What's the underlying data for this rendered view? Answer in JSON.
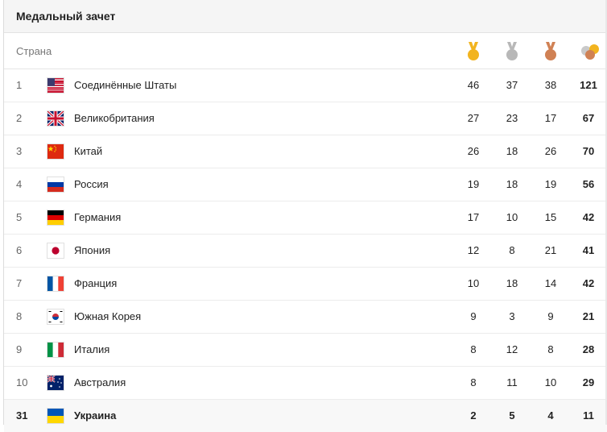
{
  "title": "Медальный зачет",
  "header": {
    "country_label": "Страна",
    "icons": [
      "gold-medal-icon",
      "silver-medal-icon",
      "bronze-medal-icon",
      "total-medals-icon"
    ]
  },
  "colors": {
    "gold": "#f2b41f",
    "silver": "#b8b8b8",
    "bronze": "#d08154",
    "highlight_row": "#f8f8f8"
  },
  "rows": [
    {
      "rank": "1",
      "country": "Соединённые Штаты",
      "flag": "us-flag-icon",
      "gold": "46",
      "silver": "37",
      "bronze": "38",
      "total": "121"
    },
    {
      "rank": "2",
      "country": "Великобритания",
      "flag": "uk-flag-icon",
      "gold": "27",
      "silver": "23",
      "bronze": "17",
      "total": "67"
    },
    {
      "rank": "3",
      "country": "Китай",
      "flag": "china-flag-icon",
      "gold": "26",
      "silver": "18",
      "bronze": "26",
      "total": "70"
    },
    {
      "rank": "4",
      "country": "Россия",
      "flag": "russia-flag-icon",
      "gold": "19",
      "silver": "18",
      "bronze": "19",
      "total": "56"
    },
    {
      "rank": "5",
      "country": "Германия",
      "flag": "germany-flag-icon",
      "gold": "17",
      "silver": "10",
      "bronze": "15",
      "total": "42"
    },
    {
      "rank": "6",
      "country": "Япония",
      "flag": "japan-flag-icon",
      "gold": "12",
      "silver": "8",
      "bronze": "21",
      "total": "41"
    },
    {
      "rank": "7",
      "country": "Франция",
      "flag": "france-flag-icon",
      "gold": "10",
      "silver": "18",
      "bronze": "14",
      "total": "42"
    },
    {
      "rank": "8",
      "country": "Южная Корея",
      "flag": "south-korea-flag-icon",
      "gold": "9",
      "silver": "3",
      "bronze": "9",
      "total": "21"
    },
    {
      "rank": "9",
      "country": "Италия",
      "flag": "italy-flag-icon",
      "gold": "8",
      "silver": "12",
      "bronze": "8",
      "total": "28"
    },
    {
      "rank": "10",
      "country": "Австралия",
      "flag": "australia-flag-icon",
      "gold": "8",
      "silver": "11",
      "bronze": "10",
      "total": "29"
    },
    {
      "rank": "31",
      "country": "Украина",
      "flag": "ukraine-flag-icon",
      "gold": "2",
      "silver": "5",
      "bronze": "4",
      "total": "11"
    }
  ]
}
